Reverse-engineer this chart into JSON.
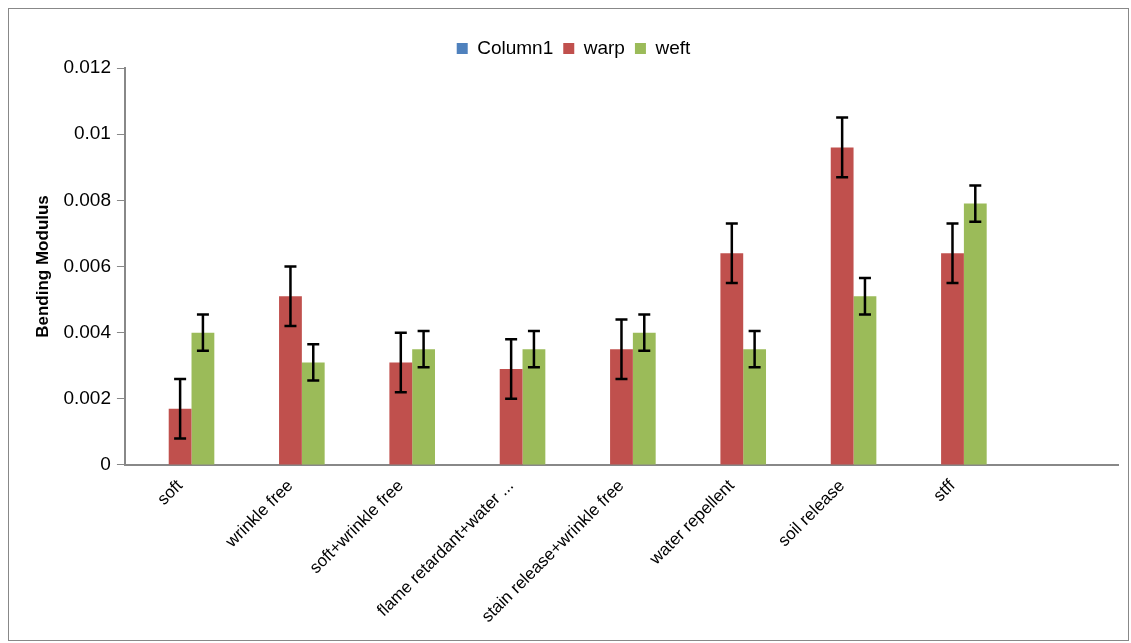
{
  "chart_data": {
    "type": "bar",
    "categories": [
      "soft",
      "wrinkle free",
      "soft+wrinkle free",
      "flame retardant+water ...",
      "stain release+wrinkle free",
      "water repellent",
      "soil release",
      "stff",
      null
    ],
    "series": [
      {
        "name": "Column1",
        "color": "#4f81bd",
        "values": [
          null,
          null,
          null,
          null,
          null,
          null,
          null,
          null,
          null
        ]
      },
      {
        "name": "warp",
        "color": "#c0504d",
        "values": [
          0.0017,
          0.0051,
          0.0031,
          0.0029,
          0.0035,
          0.0064,
          0.0096,
          0.0064,
          null
        ],
        "errors": [
          0.0009,
          0.0009,
          0.0009,
          0.0009,
          0.0009,
          0.0009,
          0.0009,
          0.0009,
          null
        ]
      },
      {
        "name": "weft",
        "color": "#9bbb59",
        "values": [
          0.004,
          0.0031,
          0.0035,
          0.0035,
          0.004,
          0.0035,
          0.0051,
          0.0079,
          null
        ],
        "errors": [
          0.00055,
          0.00055,
          0.00055,
          0.00055,
          0.00055,
          0.00055,
          0.00055,
          0.00055,
          null
        ]
      }
    ],
    "ylabel": "Bending Modulus",
    "ylim": [
      0,
      0.012
    ],
    "yticks": [
      0,
      0.002,
      0.004,
      0.006,
      0.008,
      0.01,
      0.012
    ],
    "grid": false,
    "legend": "top"
  }
}
